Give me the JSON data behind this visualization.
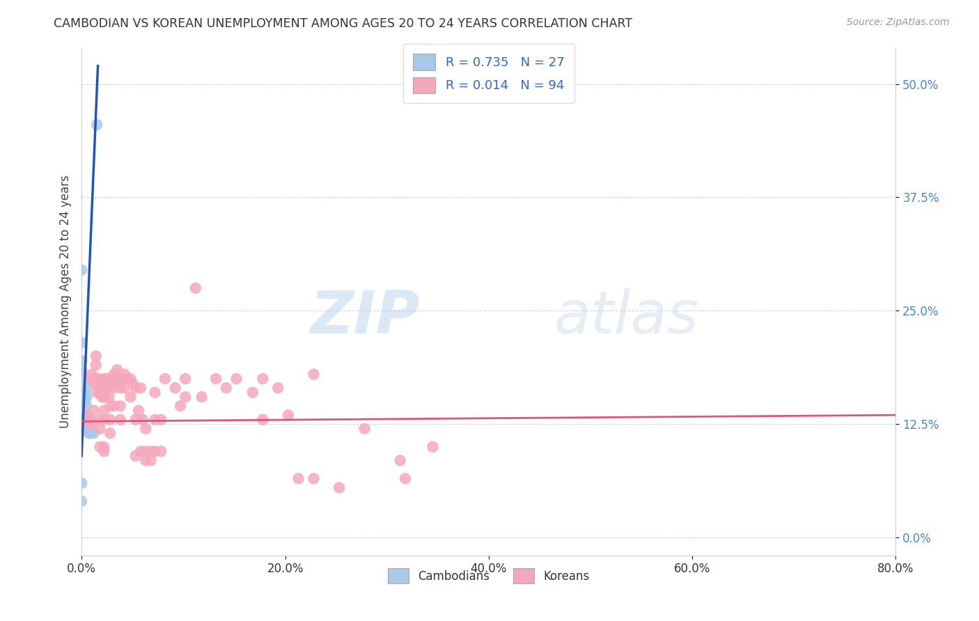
{
  "title": "CAMBODIAN VS KOREAN UNEMPLOYMENT AMONG AGES 20 TO 24 YEARS CORRELATION CHART",
  "source": "Source: ZipAtlas.com",
  "ylabel": "Unemployment Among Ages 20 to 24 years",
  "xlim": [
    0.0,
    0.8
  ],
  "ylim": [
    -0.02,
    0.54
  ],
  "xticks": [
    0.0,
    0.2,
    0.4,
    0.6,
    0.8
  ],
  "xtick_labels": [
    "0.0%",
    "20.0%",
    "40.0%",
    "60.0%",
    "80.0%"
  ],
  "yticks": [
    0.0,
    0.125,
    0.25,
    0.375,
    0.5
  ],
  "ytick_labels": [
    "0.0%",
    "12.5%",
    "25.0%",
    "37.5%",
    "50.0%"
  ],
  "cambodian_R": "0.735",
  "cambodian_N": "27",
  "korean_R": "0.014",
  "korean_N": "94",
  "cambodian_color": "#aac8e8",
  "korean_color": "#f5a8bc",
  "cambodian_line_color": "#2255bb",
  "korean_line_color": "#dd5577",
  "background_color": "#ffffff",
  "grid_color": "#cccccc",
  "watermark_zip": "ZIP",
  "watermark_atlas": "atlas",
  "cambodian_scatter": [
    [
      0.0,
      0.295
    ],
    [
      0.0,
      0.215
    ],
    [
      0.0,
      0.195
    ],
    [
      0.0,
      0.185
    ],
    [
      0.003,
      0.175
    ],
    [
      0.003,
      0.16
    ],
    [
      0.003,
      0.155
    ],
    [
      0.003,
      0.15
    ],
    [
      0.005,
      0.165
    ],
    [
      0.005,
      0.155
    ],
    [
      0.005,
      0.145
    ],
    [
      0.005,
      0.135
    ],
    [
      0.005,
      0.13
    ],
    [
      0.006,
      0.13
    ],
    [
      0.006,
      0.125
    ],
    [
      0.006,
      0.12
    ],
    [
      0.007,
      0.125
    ],
    [
      0.007,
      0.12
    ],
    [
      0.007,
      0.115
    ],
    [
      0.008,
      0.12
    ],
    [
      0.008,
      0.115
    ],
    [
      0.009,
      0.13
    ],
    [
      0.01,
      0.125
    ],
    [
      0.012,
      0.115
    ],
    [
      0.015,
      0.455
    ],
    [
      0.0,
      0.06
    ],
    [
      0.0,
      0.04
    ]
  ],
  "korean_scatter": [
    [
      0.005,
      0.135
    ],
    [
      0.007,
      0.13
    ],
    [
      0.008,
      0.125
    ],
    [
      0.01,
      0.18
    ],
    [
      0.01,
      0.175
    ],
    [
      0.012,
      0.17
    ],
    [
      0.012,
      0.14
    ],
    [
      0.014,
      0.2
    ],
    [
      0.014,
      0.19
    ],
    [
      0.015,
      0.175
    ],
    [
      0.015,
      0.16
    ],
    [
      0.017,
      0.175
    ],
    [
      0.017,
      0.165
    ],
    [
      0.018,
      0.16
    ],
    [
      0.018,
      0.13
    ],
    [
      0.018,
      0.12
    ],
    [
      0.018,
      0.1
    ],
    [
      0.02,
      0.165
    ],
    [
      0.02,
      0.155
    ],
    [
      0.022,
      0.175
    ],
    [
      0.022,
      0.165
    ],
    [
      0.022,
      0.155
    ],
    [
      0.022,
      0.14
    ],
    [
      0.022,
      0.13
    ],
    [
      0.022,
      0.1
    ],
    [
      0.022,
      0.095
    ],
    [
      0.025,
      0.175
    ],
    [
      0.025,
      0.17
    ],
    [
      0.025,
      0.165
    ],
    [
      0.027,
      0.175
    ],
    [
      0.027,
      0.165
    ],
    [
      0.027,
      0.155
    ],
    [
      0.028,
      0.145
    ],
    [
      0.028,
      0.13
    ],
    [
      0.028,
      0.115
    ],
    [
      0.03,
      0.175
    ],
    [
      0.03,
      0.17
    ],
    [
      0.032,
      0.18
    ],
    [
      0.032,
      0.175
    ],
    [
      0.032,
      0.165
    ],
    [
      0.032,
      0.145
    ],
    [
      0.035,
      0.185
    ],
    [
      0.035,
      0.175
    ],
    [
      0.038,
      0.175
    ],
    [
      0.038,
      0.165
    ],
    [
      0.038,
      0.145
    ],
    [
      0.038,
      0.13
    ],
    [
      0.04,
      0.175
    ],
    [
      0.042,
      0.18
    ],
    [
      0.042,
      0.165
    ],
    [
      0.045,
      0.175
    ],
    [
      0.048,
      0.175
    ],
    [
      0.048,
      0.155
    ],
    [
      0.05,
      0.17
    ],
    [
      0.053,
      0.165
    ],
    [
      0.053,
      0.13
    ],
    [
      0.053,
      0.09
    ],
    [
      0.056,
      0.14
    ],
    [
      0.058,
      0.165
    ],
    [
      0.058,
      0.095
    ],
    [
      0.06,
      0.13
    ],
    [
      0.063,
      0.12
    ],
    [
      0.063,
      0.095
    ],
    [
      0.063,
      0.085
    ],
    [
      0.068,
      0.095
    ],
    [
      0.068,
      0.085
    ],
    [
      0.072,
      0.16
    ],
    [
      0.072,
      0.13
    ],
    [
      0.072,
      0.095
    ],
    [
      0.078,
      0.13
    ],
    [
      0.078,
      0.095
    ],
    [
      0.082,
      0.175
    ],
    [
      0.092,
      0.165
    ],
    [
      0.097,
      0.145
    ],
    [
      0.102,
      0.175
    ],
    [
      0.102,
      0.155
    ],
    [
      0.112,
      0.275
    ],
    [
      0.118,
      0.155
    ],
    [
      0.132,
      0.175
    ],
    [
      0.142,
      0.165
    ],
    [
      0.152,
      0.175
    ],
    [
      0.168,
      0.16
    ],
    [
      0.178,
      0.175
    ],
    [
      0.178,
      0.13
    ],
    [
      0.193,
      0.165
    ],
    [
      0.203,
      0.135
    ],
    [
      0.213,
      0.065
    ],
    [
      0.228,
      0.18
    ],
    [
      0.228,
      0.065
    ],
    [
      0.253,
      0.055
    ],
    [
      0.278,
      0.12
    ],
    [
      0.313,
      0.085
    ],
    [
      0.318,
      0.065
    ],
    [
      0.345,
      0.1
    ]
  ],
  "camb_line_x": [
    0.0,
    0.016
  ],
  "camb_line_y": [
    0.09,
    0.52
  ],
  "korean_line_x": [
    0.0,
    0.8
  ],
  "korean_line_y": [
    0.128,
    0.135
  ]
}
